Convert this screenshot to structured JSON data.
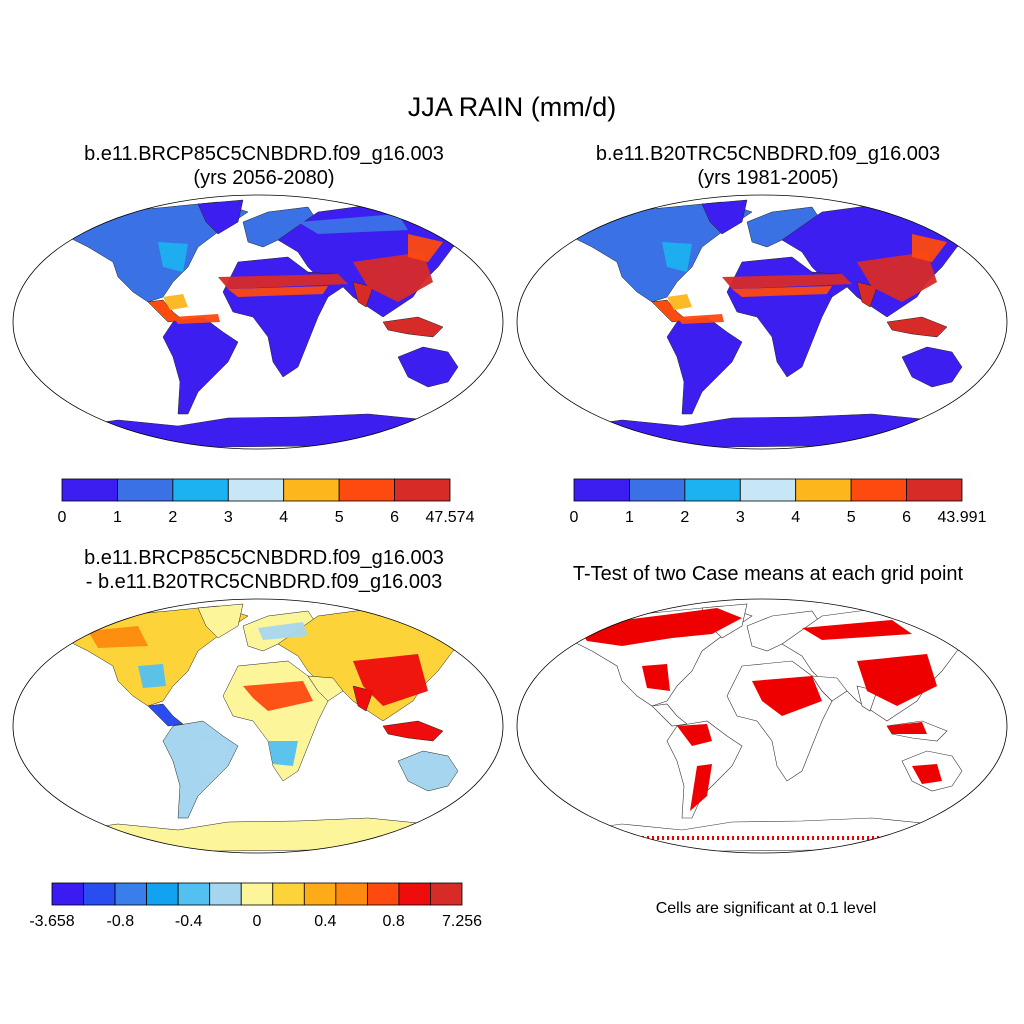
{
  "figure": {
    "title": "JJA RAIN (mm/d)"
  },
  "panels": {
    "top_left": {
      "title_line1": "b.e11.BRCP85C5CNBDRD.f09_g16.003",
      "title_line2": "(yrs 2056-2080)",
      "colorbar": {
        "colors": [
          "#3c1ff0",
          "#3a72e6",
          "#1cb1f0",
          "#c7e6f6",
          "#fdb61c",
          "#fd4a0f",
          "#d72b28"
        ],
        "labels": [
          "0",
          "1",
          "2",
          "3",
          "4",
          "5",
          "6",
          "47.574"
        ]
      }
    },
    "top_right": {
      "title_line1": "b.e11.B20TRC5CNBDRD.f09_g16.003",
      "title_line2": "(yrs 1981-2005)",
      "colorbar": {
        "colors": [
          "#3c1ff0",
          "#3a72e6",
          "#1cb1f0",
          "#c7e6f6",
          "#fdb61c",
          "#fd4a0f",
          "#d72b28"
        ],
        "labels": [
          "0",
          "1",
          "2",
          "3",
          "4",
          "5",
          "6",
          "43.991"
        ]
      }
    },
    "bottom_left": {
      "title_line1": "b.e11.BRCP85C5CNBDRD.f09_g16.003",
      "title_line2": "- b.e11.B20TRC5CNBDRD.f09_g16.003",
      "colorbar": {
        "colors": [
          "#3a1cf2",
          "#2a4df2",
          "#3a7eec",
          "#12a2f2",
          "#52c0f0",
          "#a6d6ef",
          "#fdf59a",
          "#fdd33a",
          "#fdab16",
          "#fd8a0e",
          "#fd4a10",
          "#ee0c0c",
          "#d72b28"
        ],
        "labels": [
          "-3.658",
          "-0.8",
          "-0.4",
          "0",
          "0.4",
          "0.8",
          "7.256"
        ]
      }
    },
    "bottom_right": {
      "title_line1": "T-Test of two Case means at each grid point",
      "note": "Cells are significant at 0.1 level",
      "significant_color": "#ee0000"
    }
  }
}
